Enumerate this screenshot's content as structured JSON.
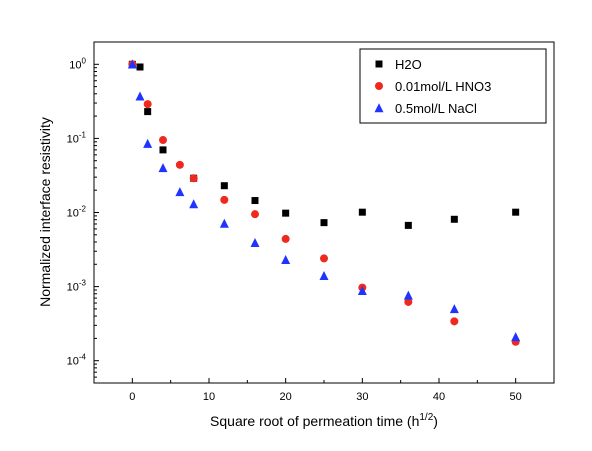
{
  "chart_data": {
    "type": "scatter",
    "title": "",
    "xlabel": {
      "base": "Square root of permeation time (h",
      "sup": "1/2",
      "tail": ")"
    },
    "ylabel": "Normalized interface resistivity",
    "xlim": [
      -5,
      55
    ],
    "ylim": [
      5e-05,
      2
    ],
    "yscale": "log",
    "grid": false,
    "legend_position": "top-right",
    "x_ticks": [
      0,
      10,
      20,
      30,
      40,
      50
    ],
    "x_tick_labels": [
      "0",
      "10",
      "20",
      "30",
      "40",
      "50"
    ],
    "y_ticks": [
      1,
      0.1,
      0.01,
      0.001,
      0.0001
    ],
    "y_tick_labels": [
      {
        "base": "10",
        "exp": "0"
      },
      {
        "base": "10",
        "exp": "-1"
      },
      {
        "base": "10",
        "exp": "-2"
      },
      {
        "base": "10",
        "exp": "-3"
      },
      {
        "base": "10",
        "exp": "-4"
      }
    ],
    "series": [
      {
        "name": "H2O",
        "marker": "square",
        "color": "#000000",
        "points": [
          [
            0,
            1.0
          ],
          [
            1,
            0.92
          ],
          [
            2,
            0.23
          ],
          [
            4,
            0.07
          ],
          [
            8,
            0.029
          ],
          [
            12,
            0.023
          ],
          [
            16,
            0.0145
          ],
          [
            20,
            0.0098
          ],
          [
            25,
            0.0073
          ],
          [
            30,
            0.0101
          ],
          [
            36,
            0.0067
          ],
          [
            42,
            0.0081
          ],
          [
            50,
            0.0101
          ]
        ]
      },
      {
        "name": "0.01mol/L HNO3",
        "marker": "circle",
        "color": "#ee2a1f",
        "points": [
          [
            0,
            1.0
          ],
          [
            2,
            0.29
          ],
          [
            4,
            0.095
          ],
          [
            6.2,
            0.044
          ],
          [
            8,
            0.029
          ],
          [
            12,
            0.0148
          ],
          [
            16,
            0.0095
          ],
          [
            20,
            0.0044
          ],
          [
            25,
            0.0024
          ],
          [
            30,
            0.00097
          ],
          [
            36,
            0.00062
          ],
          [
            42,
            0.00034
          ],
          [
            50,
            0.00018
          ]
        ]
      },
      {
        "name": "0.5mol/L NaCl",
        "marker": "triangle",
        "color": "#1f35ff",
        "points": [
          [
            0,
            1.0
          ],
          [
            1,
            0.37
          ],
          [
            2,
            0.085
          ],
          [
            4,
            0.04
          ],
          [
            6.2,
            0.019
          ],
          [
            8,
            0.013
          ],
          [
            12,
            0.0071
          ],
          [
            16,
            0.0039
          ],
          [
            20,
            0.0023
          ],
          [
            25,
            0.0014
          ],
          [
            30,
            0.00088
          ],
          [
            36,
            0.00076
          ],
          [
            42,
            0.0005
          ],
          [
            50,
            0.00021
          ]
        ]
      }
    ]
  }
}
